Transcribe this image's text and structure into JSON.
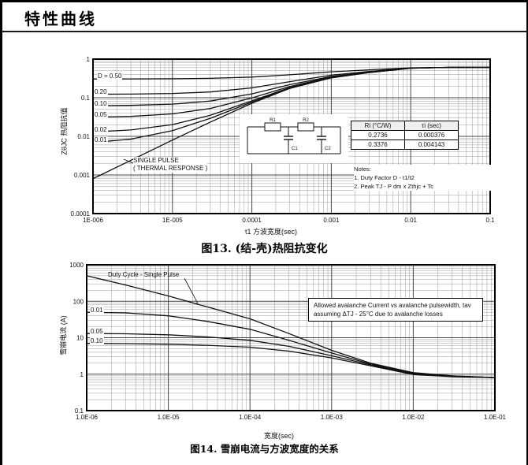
{
  "page": {
    "title": "特性曲线"
  },
  "chart_data": [
    {
      "type": "line",
      "title": "图13. (结-壳)热阻抗变化",
      "caption": "图13. (结-壳)热阻抗变化",
      "xlabel": "t1 方波宽度(sec)",
      "ylabel": "ZθJC 热阻抗值",
      "xscale": "log",
      "yscale": "log",
      "xlim": [
        1e-06,
        0.1
      ],
      "ylim": [
        0.0001,
        1
      ],
      "grid": true,
      "x_tick_labels": [
        "1E-006",
        "1E-005",
        "0.0001",
        "0.001",
        "0.01",
        "0.1"
      ],
      "y_tick_labels": [
        "1",
        "0.1",
        "0.01",
        "0.001",
        "0.0001"
      ],
      "series": [
        {
          "name": "D = 0.50",
          "points": [
            [
              1e-06,
              0.306
            ],
            [
              3e-06,
              0.307
            ],
            [
              1e-05,
              0.31
            ],
            [
              3e-05,
              0.317
            ],
            [
              0.0001,
              0.342
            ],
            [
              0.0003,
              0.393
            ],
            [
              0.001,
              0.469
            ],
            [
              0.003,
              0.529
            ],
            [
              0.01,
              0.596
            ],
            [
              0.03,
              0.611
            ],
            [
              0.1,
              0.611
            ]
          ]
        },
        {
          "name": "0.20",
          "points": [
            [
              1e-06,
              0.123
            ],
            [
              3e-06,
              0.124
            ],
            [
              1e-05,
              0.129
            ],
            [
              3e-05,
              0.141
            ],
            [
              0.0001,
              0.18
            ],
            [
              0.0003,
              0.261
            ],
            [
              0.001,
              0.384
            ],
            [
              0.003,
              0.48
            ],
            [
              0.01,
              0.587
            ],
            [
              0.03,
              0.611
            ],
            [
              0.1,
              0.611
            ]
          ]
        },
        {
          "name": "0.10",
          "points": [
            [
              1e-06,
              0.0619
            ],
            [
              3e-06,
              0.0633
            ],
            [
              1e-05,
              0.0683
            ],
            [
              3e-05,
              0.0822
            ],
            [
              0.0001,
              0.126
            ],
            [
              0.0003,
              0.218
            ],
            [
              0.001,
              0.355
            ],
            [
              0.003,
              0.463
            ],
            [
              0.01,
              0.584
            ],
            [
              0.03,
              0.611
            ],
            [
              0.1,
              0.611
            ]
          ]
        },
        {
          "name": "0.05",
          "points": [
            [
              1e-06,
              0.0313
            ],
            [
              3e-06,
              0.0329
            ],
            [
              1e-05,
              0.0382
            ],
            [
              3e-05,
              0.0528
            ],
            [
              0.0001,
              0.099
            ],
            [
              0.0003,
              0.196
            ],
            [
              0.001,
              0.341
            ],
            [
              0.003,
              0.455
            ],
            [
              0.01,
              0.583
            ],
            [
              0.03,
              0.611
            ],
            [
              0.1,
              0.611
            ]
          ]
        },
        {
          "name": "0.02",
          "points": [
            [
              1e-06,
              0.013
            ],
            [
              3e-06,
              0.0146
            ],
            [
              1e-05,
              0.0201
            ],
            [
              3e-05,
              0.0352
            ],
            [
              0.0001,
              0.0828
            ],
            [
              0.0003,
              0.183
            ],
            [
              0.001,
              0.333
            ],
            [
              0.003,
              0.45
            ],
            [
              0.01,
              0.582
            ],
            [
              0.03,
              0.611
            ],
            [
              0.1,
              0.611
            ]
          ]
        },
        {
          "name": "0.01",
          "points": [
            [
              1e-06,
              0.0069
            ],
            [
              3e-06,
              0.0085
            ],
            [
              1e-05,
              0.014
            ],
            [
              3e-05,
              0.0293
            ],
            [
              0.0001,
              0.0774
            ],
            [
              0.0003,
              0.178
            ],
            [
              0.001,
              0.33
            ],
            [
              0.003,
              0.449
            ],
            [
              0.01,
              0.581
            ],
            [
              0.03,
              0.611
            ],
            [
              0.1,
              0.611
            ]
          ]
        },
        {
          "name": "Single Pulse",
          "points": [
            [
              1e-06,
              0.0008
            ],
            [
              3e-06,
              0.0024
            ],
            [
              1e-05,
              0.008
            ],
            [
              3e-05,
              0.0234
            ],
            [
              0.0001,
              0.072
            ],
            [
              0.0003,
              0.174
            ],
            [
              0.001,
              0.327
            ],
            [
              0.003,
              0.447
            ],
            [
              0.01,
              0.581
            ],
            [
              0.03,
              0.61
            ],
            [
              0.1,
              0.611
            ]
          ]
        }
      ],
      "annotations": {
        "single_pulse_1": "SINGLE PULSE",
        "single_pulse_2": "( THERMAL RESPONSE )"
      },
      "table": {
        "headers": [
          "Ri (°C/W)",
          "τi (sec)"
        ],
        "rows": [
          [
            "0.2736",
            "0.000376"
          ],
          [
            "0.3376",
            "0.004143"
          ]
        ]
      },
      "notes": [
        "Notes:",
        "1. Duty Factor D - t1/t2",
        "2. Peak TJ - P dm x Zthjc + Tc"
      ],
      "circuit": {
        "labels": [
          "R1",
          "R2",
          "C1",
          "C2"
        ]
      }
    },
    {
      "type": "line",
      "title": "图14. 雪崩电流与方波宽度的关系",
      "caption": "图14. 雪崩电流与方波宽度的关系",
      "xlabel": "宽度(sec)",
      "ylabel": "雪崩电流 (A)",
      "xscale": "log",
      "yscale": "log",
      "xlim": [
        1e-06,
        0.1
      ],
      "ylim": [
        0.1,
        1000
      ],
      "grid": true,
      "x_tick_labels": [
        "1.0E-06",
        "1.0E-05",
        "1.0E-04",
        "1.0E-03",
        "1.0E-02",
        "1.0E-01"
      ],
      "y_tick_labels": [
        "1000",
        "100",
        "10",
        "1",
        "0.1"
      ],
      "series": [
        {
          "name": "Single Pulse",
          "points": [
            [
              1e-06,
              500
            ],
            [
              3e-06,
              280
            ],
            [
              1e-05,
              140
            ],
            [
              3e-05,
              70
            ],
            [
              0.0001,
              33
            ],
            [
              0.0003,
              13
            ],
            [
              0.001,
              4.5
            ],
            [
              0.003,
              2.0
            ],
            [
              0.01,
              1.1
            ],
            [
              0.03,
              0.9
            ],
            [
              0.1,
              0.8
            ]
          ]
        },
        {
          "name": "0.01",
          "points": [
            [
              1e-06,
              50
            ],
            [
              3e-06,
              48
            ],
            [
              1e-05,
              40
            ],
            [
              3e-05,
              28
            ],
            [
              0.0001,
              17
            ],
            [
              0.0003,
              8.5
            ],
            [
              0.001,
              3.8
            ],
            [
              0.003,
              1.9
            ],
            [
              0.01,
              1.05
            ],
            [
              0.03,
              0.9
            ],
            [
              0.1,
              0.8
            ]
          ]
        },
        {
          "name": "0.05",
          "points": [
            [
              1e-06,
              13
            ],
            [
              3e-06,
              12.8
            ],
            [
              1e-05,
              12
            ],
            [
              3e-05,
              10.5
            ],
            [
              0.0001,
              8.5
            ],
            [
              0.0003,
              5.8
            ],
            [
              0.001,
              3.2
            ],
            [
              0.003,
              1.8
            ],
            [
              0.01,
              1.0
            ],
            [
              0.03,
              0.88
            ],
            [
              0.1,
              0.8
            ]
          ]
        },
        {
          "name": "0.10",
          "points": [
            [
              1e-06,
              7
            ],
            [
              3e-06,
              6.9
            ],
            [
              1e-05,
              6.6
            ],
            [
              3e-05,
              6.2
            ],
            [
              0.0001,
              5.5
            ],
            [
              0.0003,
              4.3
            ],
            [
              0.001,
              2.8
            ],
            [
              0.003,
              1.7
            ],
            [
              0.01,
              0.98
            ],
            [
              0.03,
              0.85
            ],
            [
              0.1,
              0.8
            ]
          ]
        }
      ],
      "annotations": {
        "duty_label": "Duty Cycle - Single Pulse",
        "info_box": "Allowed avalanche Current vs avalanche pulsewidth, tav assuming ΔTJ - 25°C due to avalanche losses"
      }
    }
  ]
}
